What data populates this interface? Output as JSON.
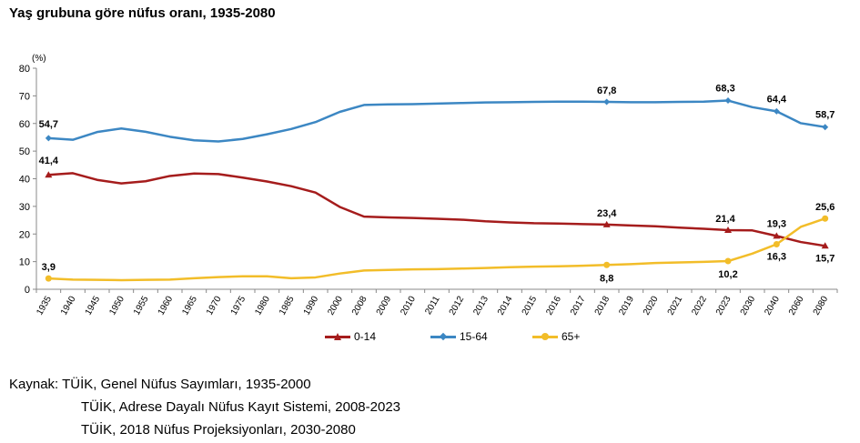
{
  "page_title": "Yaş grubuna göre nüfus oranı, 1935-2080",
  "chart_data": {
    "type": "line",
    "title": "Yaş grubuna göre nüfus oranı, 1935-2080",
    "ylabel": "(%)",
    "xlabel": "",
    "ylim": [
      0,
      80
    ],
    "yticks": [
      "0",
      "10",
      "20",
      "30",
      "40",
      "50",
      "60",
      "70",
      "80"
    ],
    "grid": false,
    "legend_position": "bottom",
    "categories": [
      "1935",
      "1940",
      "1945",
      "1950",
      "1955",
      "1960",
      "1965",
      "1970",
      "1975",
      "1980",
      "1985",
      "1990",
      "2000",
      "2008",
      "2009",
      "2010",
      "2011",
      "2012",
      "2013",
      "2014",
      "2015",
      "2016",
      "2017",
      "2018",
      "2019",
      "2020",
      "2021",
      "2022",
      "2023",
      "2030",
      "2040",
      "2060",
      "2080"
    ],
    "series": [
      {
        "name": "0-14",
        "color": "#A51C1C",
        "marker": "triangle",
        "values": [
          41.4,
          42.0,
          39.6,
          38.3,
          39.1,
          41.0,
          41.9,
          41.7,
          40.4,
          39.0,
          37.3,
          35.0,
          29.8,
          26.3,
          26.0,
          25.8,
          25.5,
          25.2,
          24.6,
          24.2,
          23.9,
          23.8,
          23.6,
          23.4,
          23.1,
          22.8,
          22.3,
          21.9,
          21.4,
          21.3,
          19.3,
          17.1,
          15.7
        ],
        "labels": [
          {
            "index": 0,
            "text": "41,4"
          },
          {
            "index": 23,
            "text": "23,4"
          },
          {
            "index": 28,
            "text": "21,4"
          },
          {
            "index": 30,
            "text": "19,3"
          },
          {
            "index": 32,
            "text": "15,7"
          }
        ]
      },
      {
        "name": "15-64",
        "color": "#3C87C3",
        "marker": "diamond",
        "values": [
          54.7,
          54.1,
          56.9,
          58.2,
          57.0,
          55.2,
          53.9,
          53.5,
          54.4,
          56.1,
          58.0,
          60.5,
          64.2,
          66.7,
          66.9,
          67.0,
          67.2,
          67.4,
          67.6,
          67.7,
          67.8,
          67.9,
          67.9,
          67.8,
          67.7,
          67.7,
          67.8,
          67.9,
          68.3,
          65.9,
          64.4,
          60.1,
          58.7
        ],
        "labels": [
          {
            "index": 0,
            "text": "54,7"
          },
          {
            "index": 23,
            "text": "67,8"
          },
          {
            "index": 28,
            "text": "68,3"
          },
          {
            "index": 30,
            "text": "64,4"
          },
          {
            "index": 32,
            "text": "58,7"
          }
        ]
      },
      {
        "name": "65+",
        "color": "#F2BD29",
        "marker": "circle",
        "values": [
          3.9,
          3.5,
          3.4,
          3.3,
          3.4,
          3.5,
          4.0,
          4.4,
          4.7,
          4.7,
          4.0,
          4.3,
          5.7,
          6.8,
          7.0,
          7.2,
          7.3,
          7.5,
          7.7,
          8.0,
          8.2,
          8.3,
          8.5,
          8.8,
          9.1,
          9.5,
          9.7,
          9.9,
          10.2,
          12.9,
          16.3,
          22.6,
          25.6
        ],
        "labels": [
          {
            "index": 0,
            "text": "3,9"
          },
          {
            "index": 23,
            "text": "8,8"
          },
          {
            "index": 28,
            "text": "10,2"
          },
          {
            "index": 30,
            "text": "16,3"
          },
          {
            "index": 32,
            "text": "25,6"
          }
        ]
      }
    ]
  },
  "source": {
    "label": "Kaynak:",
    "lines": [
      "TÜİK, Genel Nüfus Sayımları, 1935-2000",
      "TÜİK, Adrese Dayalı Nüfus Kayıt Sistemi, 2008-2023",
      "TÜİK, 2018 Nüfus Projeksiyonları, 2030-2080"
    ]
  }
}
